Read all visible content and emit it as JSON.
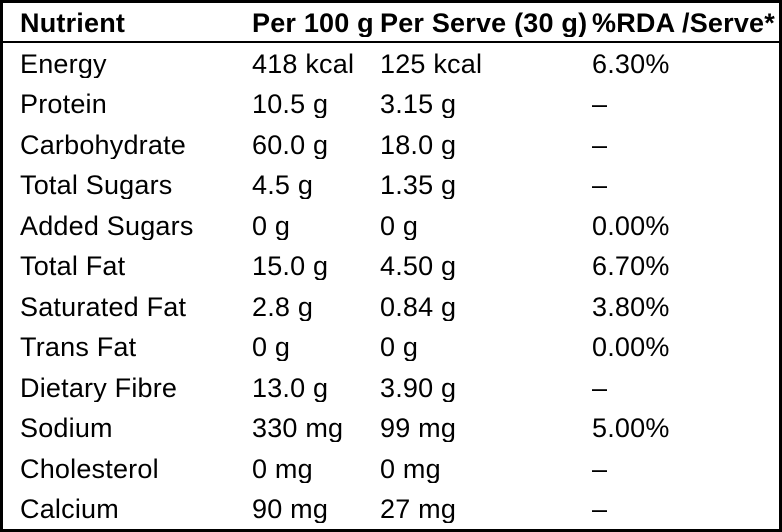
{
  "table": {
    "columns": {
      "nutrient": "Nutrient",
      "per100": "Per 100 g",
      "perServe": "Per Serve (30 g)",
      "rda": "%RDA /Serve*"
    },
    "rows": [
      {
        "nutrient": "Energy",
        "per100": "418 kcal",
        "perServe": "125 kcal",
        "rda": "6.30%"
      },
      {
        "nutrient": "Protein",
        "per100": "10.5 g",
        "perServe": "3.15 g",
        "rda": "–"
      },
      {
        "nutrient": "Carbohydrate",
        "per100": "60.0 g",
        "perServe": "18.0 g",
        "rda": "–"
      },
      {
        "nutrient": "Total Sugars",
        "per100": "4.5 g",
        "perServe": "1.35 g",
        "rda": "–"
      },
      {
        "nutrient": "Added Sugars",
        "per100": "0 g",
        "perServe": "0 g",
        "rda": "0.00%"
      },
      {
        "nutrient": "Total Fat",
        "per100": "15.0 g",
        "perServe": "4.50 g",
        "rda": "6.70%"
      },
      {
        "nutrient": "Saturated Fat",
        "per100": "2.8 g",
        "perServe": "0.84 g",
        "rda": "3.80%"
      },
      {
        "nutrient": "Trans Fat",
        "per100": "0 g",
        "perServe": "0 g",
        "rda": "0.00%"
      },
      {
        "nutrient": "Dietary Fibre",
        "per100": "13.0 g",
        "perServe": "3.90 g",
        "rda": "–"
      },
      {
        "nutrient": "Sodium",
        "per100": "330 mg",
        "perServe": "99 mg",
        "rda": "5.00%"
      },
      {
        "nutrient": "Cholesterol",
        "per100": "0 mg",
        "perServe": "0 mg",
        "rda": "–"
      },
      {
        "nutrient": "Calcium",
        "per100": "90 mg",
        "perServe": "27 mg",
        "rda": "–"
      }
    ],
    "colors": {
      "border": "#000000",
      "text": "#000000",
      "background": "#ffffff"
    }
  }
}
